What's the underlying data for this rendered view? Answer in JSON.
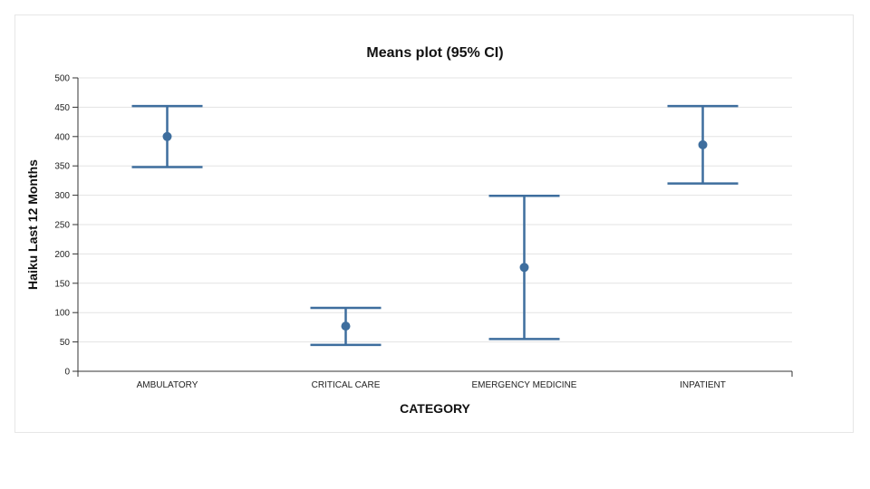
{
  "chart_data": {
    "type": "scatter",
    "title": "Means plot (95% CI)",
    "xlabel": "CATEGORY",
    "ylabel": "Haiku Last 12 Months",
    "ylim": [
      0,
      500
    ],
    "yticks": [
      0,
      50,
      100,
      150,
      200,
      250,
      300,
      350,
      400,
      450,
      500
    ],
    "grid": true,
    "categories": [
      "AMBULATORY",
      "CRITICAL CARE",
      "EMERGENCY MEDICINE",
      "INPATIENT"
    ],
    "series": [
      {
        "mean": [
          400,
          77,
          177,
          386
        ],
        "ci_lower": [
          348,
          45,
          55,
          320
        ],
        "ci_upper": [
          452,
          108,
          299,
          452
        ]
      }
    ],
    "color": "#3e6e9e"
  }
}
